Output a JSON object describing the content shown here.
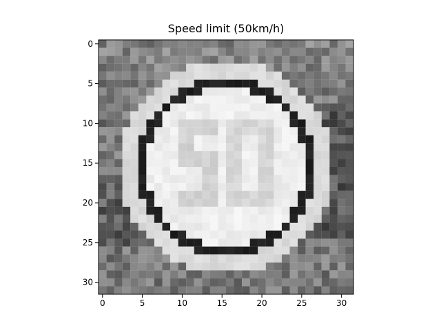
{
  "figure": {
    "title": "Speed limit (50km/h)"
  },
  "image": {
    "width": 32,
    "height": 32,
    "colormap": "gray",
    "x_ticks": [
      0,
      5,
      10,
      15,
      20,
      25,
      30
    ],
    "y_ticks": [
      0,
      5,
      10,
      15,
      20,
      25,
      30
    ]
  }
}
